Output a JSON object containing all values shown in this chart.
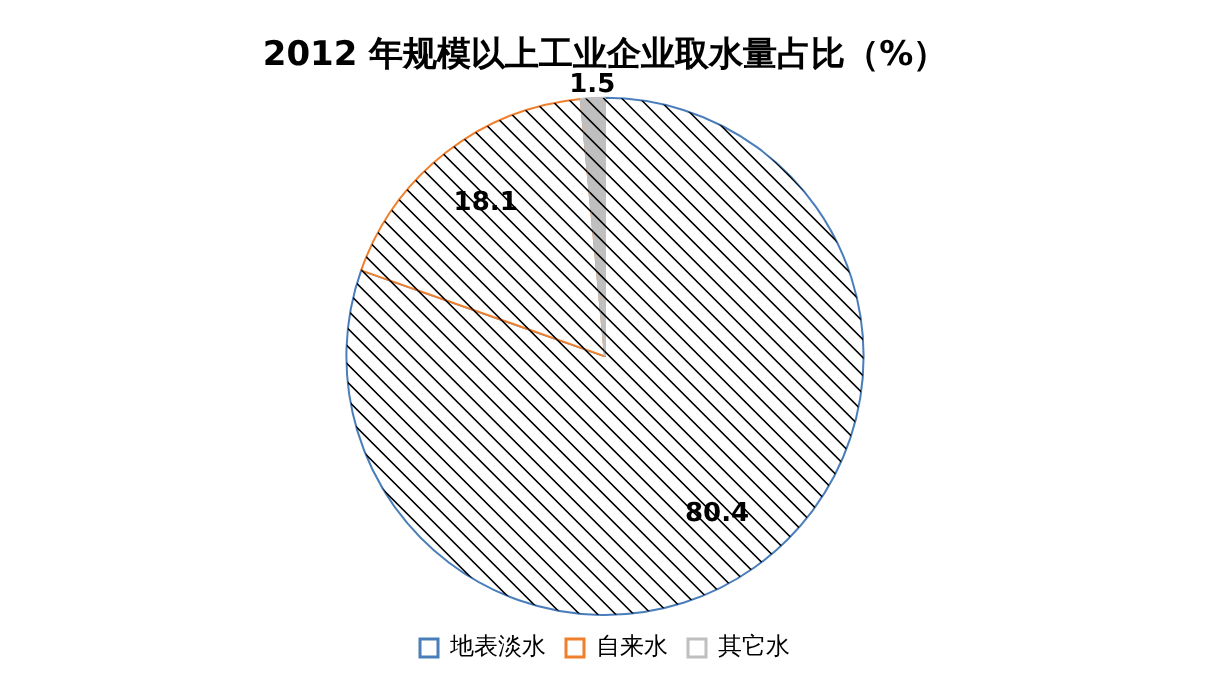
{
  "chart_data": {
    "type": "pie",
    "title": "2012 年规模以上工业企业取水量占比（%）",
    "categories": [
      "地表淡水",
      "自来水",
      "其它水"
    ],
    "values": [
      80.4,
      18.1,
      1.5
    ],
    "colors": [
      "#4a7ebb",
      "#f07f2c",
      "#bfbfbf"
    ],
    "data_labels": true,
    "legend": "bottom"
  }
}
